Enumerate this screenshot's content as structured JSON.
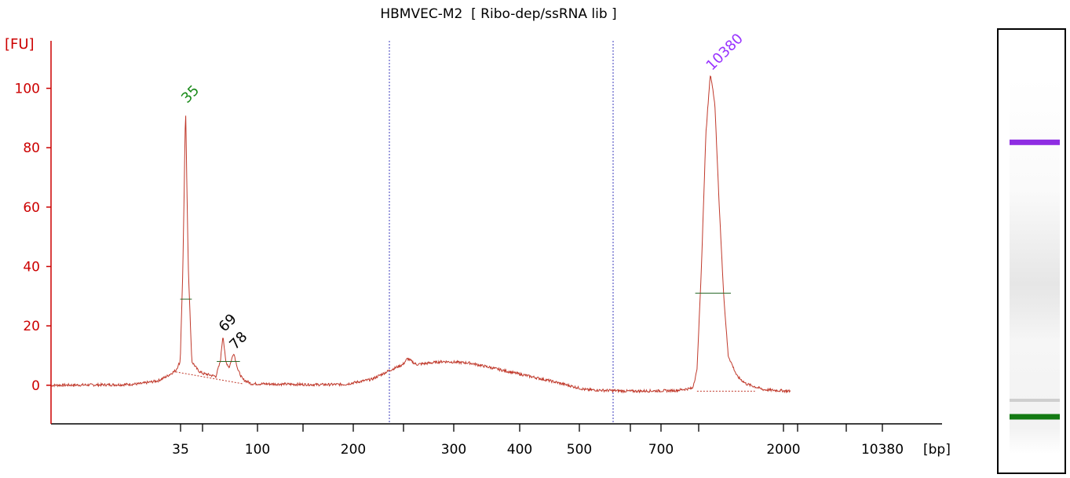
{
  "chart_data": {
    "type": "line",
    "title": "HBMVEC-M2  [ Ribo-dep/ssRNA lib ]",
    "ylabel": "[FU]",
    "xlabel": "[bp]",
    "ylim": [
      -13,
      116
    ],
    "y_ticks": [
      0,
      20,
      40,
      60,
      80,
      100
    ],
    "x_tick_labels": [
      "35",
      "100",
      "200",
      "300",
      "400",
      "500",
      "700",
      "2000",
      "10380"
    ],
    "grid": false,
    "series": [
      {
        "values_note": "",
        "trace": [
          [
            0,
            0
          ],
          [
            0.08,
            0.2
          ],
          [
            0.1,
            0.5
          ],
          [
            0.12,
            1.5
          ],
          [
            0.13,
            3
          ],
          [
            0.14,
            5
          ],
          [
            0.145,
            8
          ],
          [
            0.148,
            40
          ],
          [
            0.151,
            94
          ],
          [
            0.154,
            40
          ],
          [
            0.158,
            8
          ],
          [
            0.165,
            5
          ],
          [
            0.17,
            4
          ],
          [
            0.185,
            3
          ],
          [
            0.19,
            8
          ],
          [
            0.193,
            17
          ],
          [
            0.196,
            8
          ],
          [
            0.2,
            6
          ],
          [
            0.205,
            11
          ],
          [
            0.21,
            5
          ],
          [
            0.215,
            2
          ],
          [
            0.225,
            0.5
          ],
          [
            0.3,
            0.2
          ],
          [
            0.33,
            0.3
          ],
          [
            0.36,
            2
          ],
          [
            0.38,
            5
          ],
          [
            0.395,
            7
          ],
          [
            0.4,
            9
          ],
          [
            0.41,
            7
          ],
          [
            0.44,
            8
          ],
          [
            0.47,
            7.5
          ],
          [
            0.5,
            5.5
          ],
          [
            0.53,
            3.5
          ],
          [
            0.56,
            1.5
          ],
          [
            0.6,
            -1.5
          ],
          [
            0.65,
            -2
          ],
          [
            0.7,
            -1.8
          ],
          [
            0.72,
            -1
          ],
          [
            0.725,
            5
          ],
          [
            0.73,
            40
          ],
          [
            0.735,
            85
          ],
          [
            0.74,
            105
          ],
          [
            0.745,
            95
          ],
          [
            0.75,
            60
          ],
          [
            0.755,
            30
          ],
          [
            0.76,
            10
          ],
          [
            0.77,
            3
          ],
          [
            0.78,
            0.5
          ],
          [
            0.8,
            -1.5
          ],
          [
            0.83,
            -2
          ]
        ]
      }
    ],
    "peaks": [
      {
        "label": "35",
        "color": "#1a8a1a",
        "value": 94
      },
      {
        "label": "69",
        "color": "#000000",
        "value": 17
      },
      {
        "label": "78",
        "color": "#000000",
        "value": 11
      },
      {
        "label": "10380",
        "color": "#9933ff",
        "value": 105
      }
    ],
    "colors": {
      "trace": "#c0392b",
      "axis": "#cc0000",
      "marker_lower": "#1a8a1a",
      "marker_upper": "#9933ff",
      "region_line": "#3b3bbd"
    }
  },
  "gel": {
    "bands": [
      {
        "name": "upper-marker",
        "color": "#8e2de2",
        "position": 0.255
      },
      {
        "name": "lower-marker",
        "color": "#137a13",
        "position": 0.875
      }
    ]
  }
}
